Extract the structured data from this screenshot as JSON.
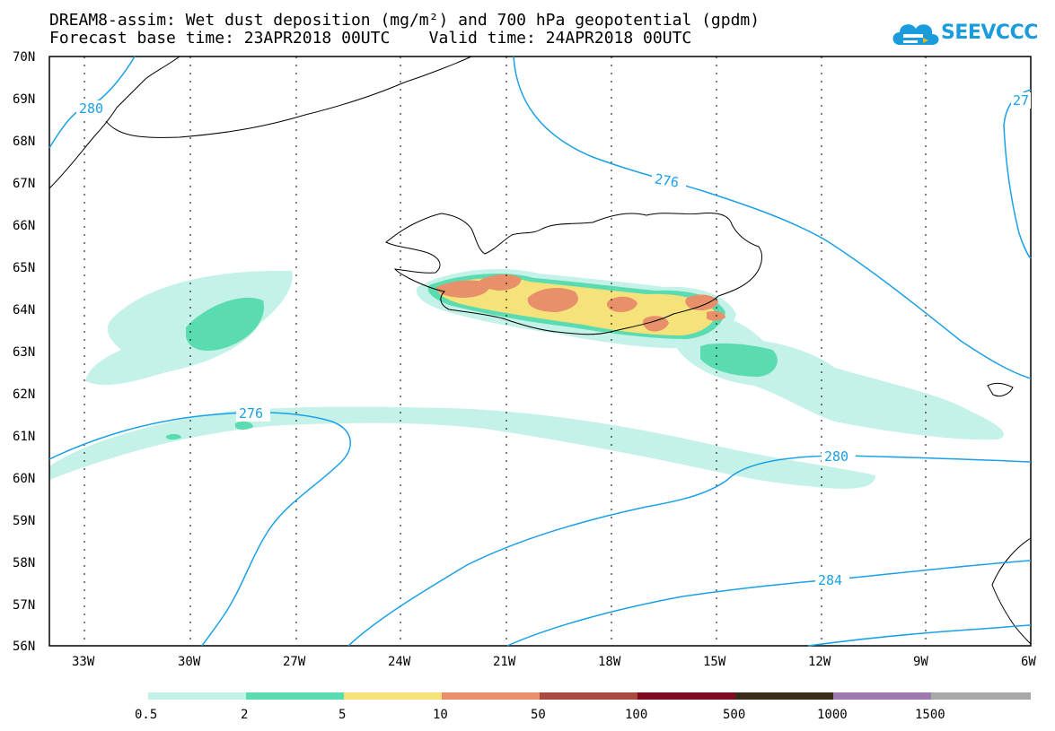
{
  "title_line1": "DREAM8-assim: Wet dust deposition (mg/m²) and 700 hPa geopotential (gpdm)",
  "title_line2": "Forecast base time: 23APR2018 00UTC    Valid time: 24APR2018 00UTC",
  "logo": {
    "text": "SEEVCCC",
    "icon": "cloud-icon"
  },
  "map": {
    "lat_labels": [
      "70N",
      "69N",
      "68N",
      "67N",
      "66N",
      "65N",
      "64N",
      "63N",
      "62N",
      "61N",
      "60N",
      "59N",
      "58N",
      "57N",
      "56N"
    ],
    "lon_labels": [
      "33W",
      "30W",
      "27W",
      "24W",
      "21W",
      "18W",
      "15W",
      "12W",
      "9W",
      "6W"
    ],
    "contour_labels": [
      "280",
      "27",
      "276",
      "276",
      "280",
      "284"
    ]
  },
  "legend": {
    "labels": [
      "0.5",
      "2",
      "5",
      "10",
      "50",
      "100",
      "500",
      "1000",
      "1500"
    ],
    "colors": [
      "#c4f1e8",
      "#5adcb0",
      "#f6e27a",
      "#e8906a",
      "#a44a3e",
      "#7e0b1f",
      "#3a2a18",
      "#9d7bb0",
      "#a8a8a8"
    ]
  },
  "colors": {
    "contour": "#1aa0e6",
    "accent": "#1a9bdc"
  }
}
